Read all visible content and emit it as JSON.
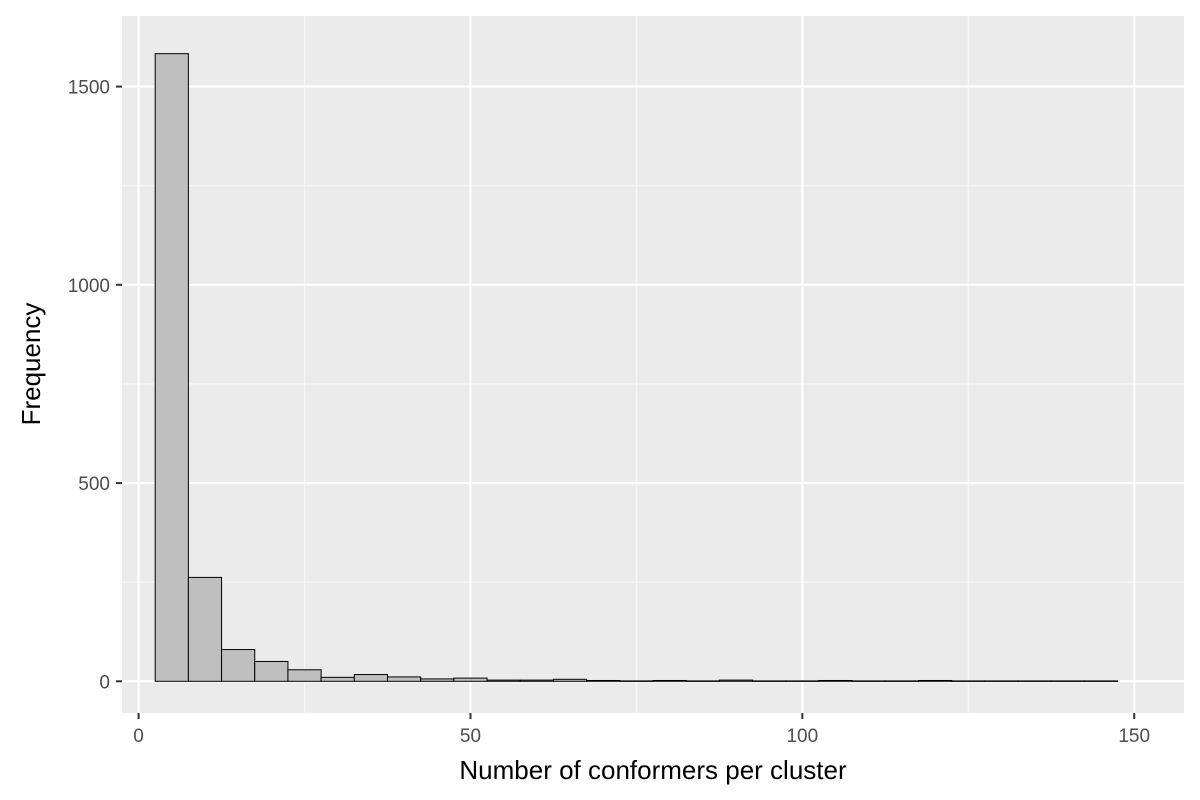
{
  "chart_data": {
    "type": "bar",
    "subtype": "histogram",
    "title": "",
    "xlabel": "Number of conformers per cluster",
    "ylabel": "Frequency",
    "xlim": [
      -2.5,
      157.5
    ],
    "ylim": [
      -80,
      1678
    ],
    "bin_width": 5,
    "bins": [
      {
        "x0": 2.5,
        "x1": 7.5,
        "count": 1583
      },
      {
        "x0": 7.5,
        "x1": 12.5,
        "count": 262
      },
      {
        "x0": 12.5,
        "x1": 17.5,
        "count": 80
      },
      {
        "x0": 17.5,
        "x1": 22.5,
        "count": 50
      },
      {
        "x0": 22.5,
        "x1": 27.5,
        "count": 29
      },
      {
        "x0": 27.5,
        "x1": 32.5,
        "count": 10
      },
      {
        "x0": 32.5,
        "x1": 37.5,
        "count": 17
      },
      {
        "x0": 37.5,
        "x1": 42.5,
        "count": 11
      },
      {
        "x0": 42.5,
        "x1": 47.5,
        "count": 6
      },
      {
        "x0": 47.5,
        "x1": 52.5,
        "count": 8
      },
      {
        "x0": 52.5,
        "x1": 57.5,
        "count": 3
      },
      {
        "x0": 57.5,
        "x1": 62.5,
        "count": 3
      },
      {
        "x0": 62.5,
        "x1": 67.5,
        "count": 5
      },
      {
        "x0": 67.5,
        "x1": 72.5,
        "count": 2
      },
      {
        "x0": 72.5,
        "x1": 77.5,
        "count": 1
      },
      {
        "x0": 77.5,
        "x1": 82.5,
        "count": 2
      },
      {
        "x0": 82.5,
        "x1": 87.5,
        "count": 1
      },
      {
        "x0": 87.5,
        "x1": 92.5,
        "count": 3
      },
      {
        "x0": 92.5,
        "x1": 97.5,
        "count": 1
      },
      {
        "x0": 97.5,
        "x1": 102.5,
        "count": 1
      },
      {
        "x0": 102.5,
        "x1": 107.5,
        "count": 2
      },
      {
        "x0": 107.5,
        "x1": 112.5,
        "count": 1
      },
      {
        "x0": 112.5,
        "x1": 117.5,
        "count": 1
      },
      {
        "x0": 117.5,
        "x1": 122.5,
        "count": 2
      },
      {
        "x0": 122.5,
        "x1": 127.5,
        "count": 1
      },
      {
        "x0": 127.5,
        "x1": 132.5,
        "count": 1
      },
      {
        "x0": 132.5,
        "x1": 137.5,
        "count": 1
      },
      {
        "x0": 137.5,
        "x1": 142.5,
        "count": 1
      },
      {
        "x0": 142.5,
        "x1": 147.5,
        "count": 1
      }
    ],
    "x_ticks": [
      {
        "value": 0,
        "label": "0"
      },
      {
        "value": 50,
        "label": "50"
      },
      {
        "value": 100,
        "label": "100"
      },
      {
        "value": 150,
        "label": "150"
      }
    ],
    "x_minor": [
      25,
      75,
      125
    ],
    "y_ticks": [
      {
        "value": 0,
        "label": "0"
      },
      {
        "value": 500,
        "label": "500"
      },
      {
        "value": 1000,
        "label": "1000"
      },
      {
        "value": 1500,
        "label": "1500"
      }
    ],
    "y_minor": [
      250,
      750,
      1250
    ],
    "grid": true,
    "legend": "none",
    "colors": {
      "panel_background": "#ebebeb",
      "grid_major": "#ffffff",
      "grid_minor": "#f7f7f7",
      "bar_fill": "#bfbfbf",
      "bar_stroke": "#000000",
      "tick_mark": "#333333",
      "tick_label": "#4d4d4d",
      "axis_title": "#000000"
    }
  }
}
